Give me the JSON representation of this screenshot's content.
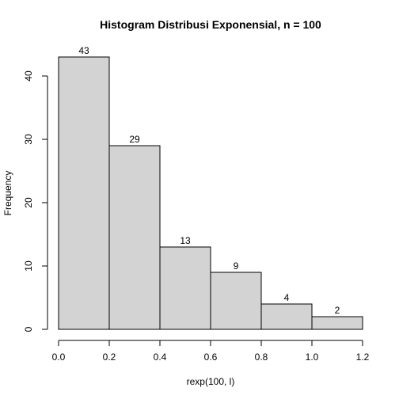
{
  "chart_data": {
    "type": "bar",
    "title": "Histogram Distribusi Exponensial, n = 100",
    "xlabel": "rexp(100, l)",
    "ylabel": "Frequency",
    "bins": [
      {
        "start": 0.0,
        "end": 0.2,
        "count": 43
      },
      {
        "start": 0.2,
        "end": 0.4,
        "count": 29
      },
      {
        "start": 0.4,
        "end": 0.6,
        "count": 13
      },
      {
        "start": 0.6,
        "end": 0.8,
        "count": 9
      },
      {
        "start": 0.8,
        "end": 1.0,
        "count": 4
      },
      {
        "start": 1.0,
        "end": 1.2,
        "count": 2
      }
    ],
    "xlim": [
      0.0,
      1.2
    ],
    "ylim": [
      0,
      43
    ],
    "x_ticks": [
      "0.0",
      "0.2",
      "0.4",
      "0.6",
      "0.8",
      "1.0",
      "1.2"
    ],
    "y_ticks": [
      "0",
      "10",
      "20",
      "30",
      "40"
    ],
    "bar_color": "#d3d3d3",
    "edge_color": "#000000",
    "grid": false,
    "legend": "none"
  }
}
